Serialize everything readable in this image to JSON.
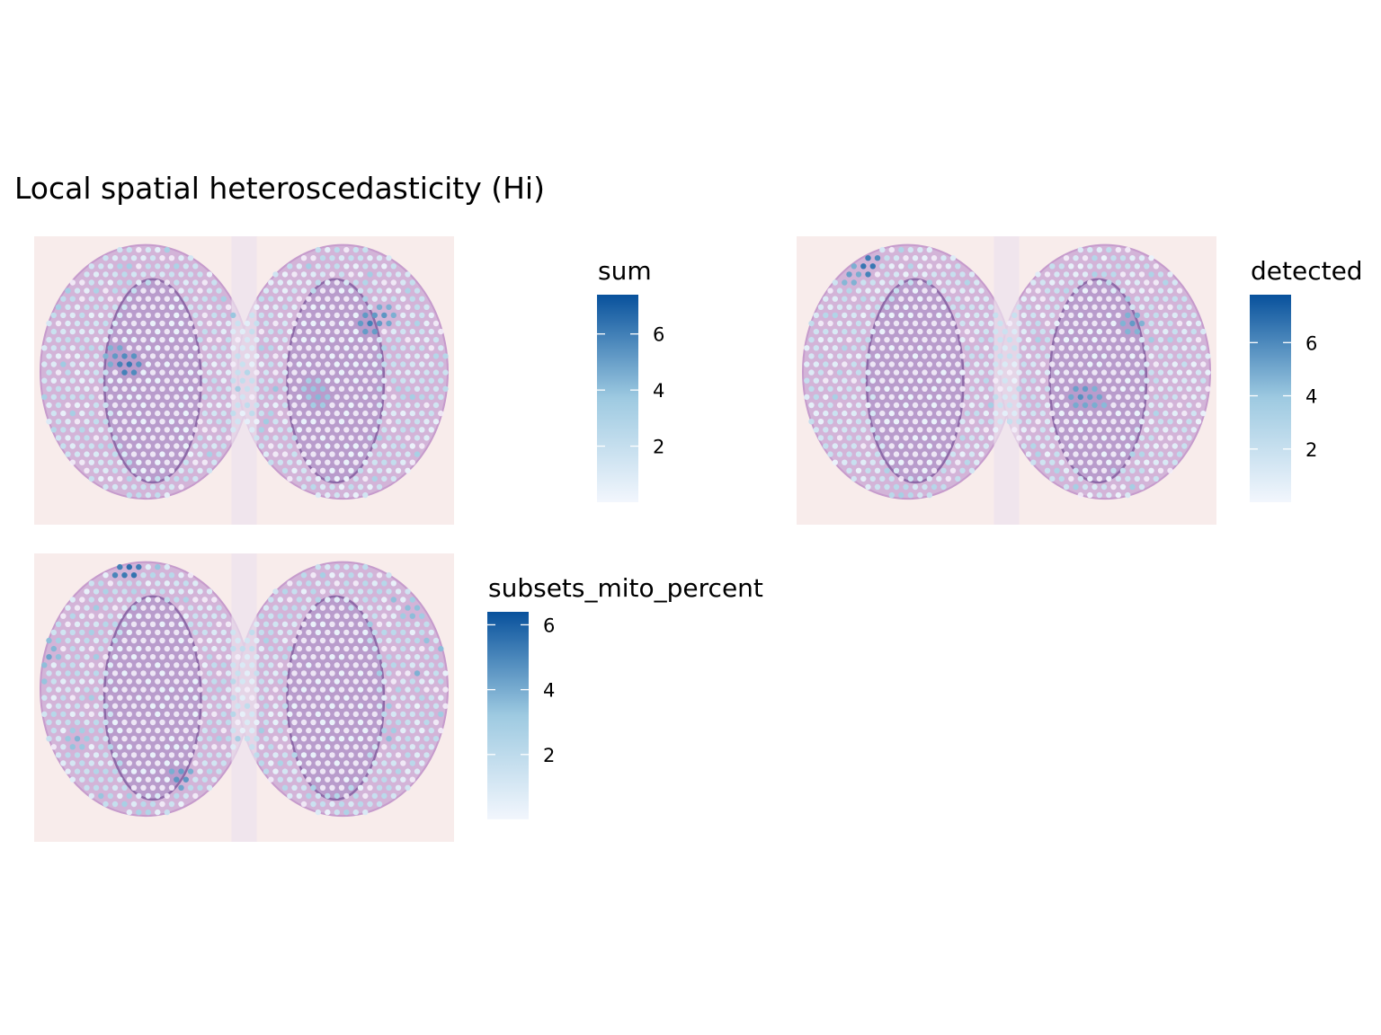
{
  "title": "Local spatial heteroscedasticity (Hi)",
  "colors": {
    "tissue_background": "#f8eceb",
    "low": "#f2f6fd",
    "mid": "#9ecae1",
    "high": "#08519c"
  },
  "chart_data": [
    {
      "type": "heatmap",
      "variable": "sum",
      "legend_title": "sum",
      "color_range": [
        0.0,
        7.4
      ],
      "legend_ticks": [
        2,
        4,
        6
      ],
      "legend_tick_labels": [
        "2",
        "4",
        "6"
      ],
      "highlights": [
        [
          0.22,
          0.45,
          6.5
        ],
        [
          0.2,
          0.42,
          5.5
        ],
        [
          0.8,
          0.3,
          6.0
        ],
        [
          0.83,
          0.28,
          5.5
        ],
        [
          0.68,
          0.55,
          4.5
        ],
        [
          0.66,
          0.53,
          4.0
        ]
      ]
    },
    {
      "type": "heatmap",
      "variable": "detected",
      "legend_title": "detected",
      "color_range": [
        0.0,
        7.8
      ],
      "legend_ticks": [
        2,
        4,
        6
      ],
      "legend_tick_labels": [
        "2",
        "4",
        "6"
      ],
      "highlights": [
        [
          0.17,
          0.1,
          7.0
        ],
        [
          0.13,
          0.13,
          5.5
        ],
        [
          0.8,
          0.3,
          5.5
        ],
        [
          0.68,
          0.55,
          6.0
        ],
        [
          0.71,
          0.56,
          5.5
        ],
        [
          0.25,
          0.9,
          3.5
        ]
      ]
    },
    {
      "type": "heatmap",
      "variable": "subsets_mito_percent",
      "legend_title": "subsets_mito_percent",
      "color_range": [
        0.0,
        6.4
      ],
      "legend_ticks": [
        2,
        4,
        6
      ],
      "legend_tick_labels": [
        "2",
        "4",
        "6"
      ],
      "highlights": [
        [
          0.23,
          0.06,
          6.0
        ],
        [
          0.2,
          0.06,
          5.5
        ],
        [
          0.03,
          0.35,
          4.5
        ],
        [
          0.35,
          0.78,
          5.0
        ],
        [
          0.4,
          0.93,
          4.5
        ],
        [
          0.1,
          0.65,
          4.0
        ],
        [
          0.9,
          0.2,
          4.0
        ]
      ]
    }
  ]
}
